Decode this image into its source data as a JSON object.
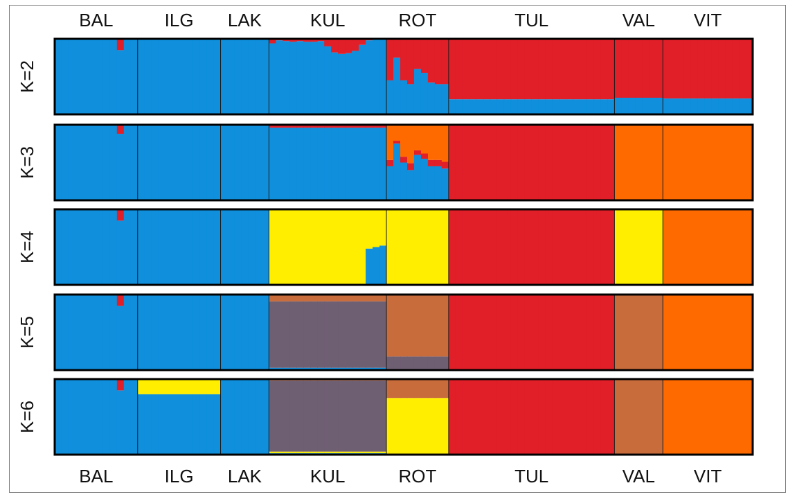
{
  "chart_data": {
    "type": "bar",
    "stacked": true,
    "normalized": true,
    "ylim": [
      0,
      1
    ],
    "grid": false,
    "populations": [
      {
        "label": "BAL",
        "n": 12
      },
      {
        "label": "ILG",
        "n": 12
      },
      {
        "label": "LAK",
        "n": 7
      },
      {
        "label": "KUL",
        "n": 17
      },
      {
        "label": "ROT",
        "n": 9
      },
      {
        "label": "TUL",
        "n": 24
      },
      {
        "label": "VAL",
        "n": 7
      },
      {
        "label": "VIT",
        "n": 13
      }
    ],
    "cluster_colors": {
      "blue": "#0f8fdc",
      "red": "#e01f29",
      "orange": "#ff6a00",
      "yellow": "#ffee00",
      "purple": "#6f5f73",
      "brown": "#c96c3c"
    },
    "panels": [
      {
        "k_label": "K=2",
        "clusters": [
          "blue",
          "red"
        ],
        "population_q": {
          "BAL": [
            0.99,
            0.01
          ],
          "ILG": [
            1.0,
            0.0
          ],
          "LAK": [
            1.0,
            0.0
          ],
          "KUL": [
            0.95,
            0.05
          ],
          "ROT": [
            0.32,
            0.68
          ],
          "TUL": [
            0.2,
            0.8
          ],
          "VAL": [
            0.22,
            0.78
          ],
          "VIT": [
            0.21,
            0.79
          ]
        },
        "individual_q": {
          "BAL": [
            0.99,
            0.99,
            0.99,
            0.99,
            0.99,
            0.99,
            0.99,
            0.99,
            0.99,
            0.85,
            0.99,
            0.99
          ],
          "KUL": [
            0.94,
            0.98,
            0.97,
            0.96,
            0.97,
            0.96,
            0.96,
            0.97,
            0.9,
            0.82,
            0.8,
            0.81,
            0.84,
            0.92,
            0.98,
            0.99,
            0.99
          ],
          "ROT": [
            0.45,
            0.75,
            0.45,
            0.4,
            0.6,
            0.55,
            0.42,
            0.4,
            0.4
          ]
        }
      },
      {
        "k_label": "K=3",
        "clusters": [
          "blue",
          "red",
          "orange"
        ],
        "population_q": {
          "BAL": [
            0.99,
            0.01,
            0.0
          ],
          "ILG": [
            1.0,
            0.0,
            0.0
          ],
          "LAK": [
            1.0,
            0.0,
            0.0
          ],
          "KUL": [
            0.96,
            0.03,
            0.01
          ],
          "ROT": [
            0.35,
            0.1,
            0.55
          ],
          "TUL": [
            0.0,
            0.99,
            0.01
          ],
          "VAL": [
            0.0,
            0.0,
            1.0
          ],
          "VIT": [
            0.0,
            0.01,
            0.99
          ]
        },
        "individual_q": {
          "BAL": [
            0.99,
            0.99,
            0.99,
            0.99,
            0.99,
            0.99,
            0.99,
            0.99,
            0.99,
            0.88,
            0.99,
            0.99
          ],
          "ROT": [
            0.45,
            0.75,
            0.5,
            0.4,
            0.6,
            0.55,
            0.45,
            0.45,
            0.42
          ]
        }
      },
      {
        "k_label": "K=4",
        "clusters": [
          "blue",
          "red",
          "orange",
          "yellow"
        ],
        "population_q": {
          "BAL": [
            0.99,
            0.01,
            0.0,
            0.0
          ],
          "ILG": [
            1.0,
            0.0,
            0.0,
            0.0
          ],
          "LAK": [
            1.0,
            0.0,
            0.0,
            0.0
          ],
          "KUL": [
            0.05,
            0.0,
            0.0,
            0.95
          ],
          "ROT": [
            0.0,
            0.0,
            0.0,
            1.0
          ],
          "TUL": [
            0.0,
            1.0,
            0.0,
            0.0
          ],
          "VAL": [
            0.0,
            0.0,
            0.0,
            1.0
          ],
          "VIT": [
            0.0,
            0.01,
            0.99,
            0.0
          ]
        },
        "individual_q": {
          "BAL": [
            0.99,
            0.99,
            0.99,
            0.99,
            0.99,
            0.99,
            0.99,
            0.99,
            0.99,
            0.85,
            0.99,
            0.99
          ],
          "KUL": [
            0,
            0,
            0,
            0,
            0,
            0,
            0,
            0,
            0,
            0,
            0,
            0,
            0,
            0,
            0.48,
            0.5,
            0.52
          ]
        }
      },
      {
        "k_label": "K=5",
        "clusters": [
          "blue",
          "red",
          "orange",
          "purple",
          "brown"
        ],
        "population_q": {
          "BAL": [
            0.99,
            0.01,
            0.0,
            0.0,
            0.0
          ],
          "ILG": [
            1.0,
            0.0,
            0.0,
            0.0,
            0.0
          ],
          "LAK": [
            1.0,
            0.0,
            0.0,
            0.0,
            0.0
          ],
          "KUL": [
            0.03,
            0.0,
            0.0,
            0.88,
            0.09
          ],
          "ROT": [
            0.0,
            0.0,
            0.0,
            0.18,
            0.82
          ],
          "TUL": [
            0.0,
            1.0,
            0.0,
            0.0,
            0.0
          ],
          "VAL": [
            0.0,
            0.0,
            0.0,
            0.0,
            1.0
          ],
          "VIT": [
            0.0,
            0.01,
            0.99,
            0.0,
            0.0
          ]
        },
        "individual_q": {
          "BAL": [
            0.99,
            0.99,
            0.99,
            0.99,
            0.99,
            0.99,
            0.99,
            0.99,
            0.99,
            0.85,
            0.99,
            0.99
          ]
        }
      },
      {
        "k_label": "K=6",
        "clusters": [
          "blue",
          "red",
          "orange",
          "yellow",
          "purple",
          "brown"
        ],
        "population_q": {
          "BAL": [
            0.99,
            0.01,
            0.0,
            0.0,
            0.0,
            0.0
          ],
          "ILG": [
            0.8,
            0.0,
            0.0,
            0.2,
            0.0,
            0.0
          ],
          "LAK": [
            1.0,
            0.0,
            0.0,
            0.0,
            0.0,
            0.0
          ],
          "KUL": [
            0.02,
            0.0,
            0.0,
            0.02,
            0.94,
            0.02
          ],
          "ROT": [
            0.0,
            0.0,
            0.0,
            0.75,
            0.0,
            0.25
          ],
          "TUL": [
            0.0,
            1.0,
            0.0,
            0.0,
            0.0,
            0.0
          ],
          "VAL": [
            0.0,
            0.0,
            0.0,
            0.0,
            0.0,
            1.0
          ],
          "VIT": [
            0.0,
            0.01,
            0.99,
            0.0,
            0.0,
            0.0
          ]
        },
        "individual_q": {
          "BAL": [
            0.99,
            0.99,
            0.99,
            0.99,
            0.99,
            0.99,
            0.99,
            0.99,
            0.99,
            0.85,
            0.99,
            0.99
          ]
        }
      }
    ]
  }
}
